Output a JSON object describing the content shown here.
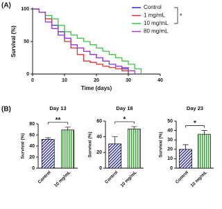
{
  "panel_labels": [
    "(A)",
    "(B)"
  ],
  "chart_data": [
    {
      "type": "line",
      "step": true,
      "xlabel": "Time (days)",
      "ylabel": "Survival (%)",
      "x": [
        0,
        2,
        4,
        6,
        8,
        10,
        12,
        14,
        16,
        18,
        20,
        22,
        24,
        26,
        28,
        30,
        32,
        34,
        36
      ],
      "series": [
        {
          "name": "Control",
          "color": "#2b2bd9",
          "values": [
            100,
            95,
            85,
            75,
            65,
            55,
            45,
            40,
            35,
            30,
            25,
            20,
            15,
            12,
            8,
            0,
            null,
            null,
            null
          ]
        },
        {
          "name": "1 mg/mL",
          "color": "#e0302e",
          "values": [
            100,
            95,
            85,
            70,
            60,
            50,
            40,
            30,
            20,
            18,
            15,
            12,
            10,
            8,
            5,
            0,
            null,
            null,
            null
          ]
        },
        {
          "name": "10 mg/mL",
          "color": "#39c43a",
          "values": [
            100,
            95,
            90,
            85,
            75,
            65,
            60,
            55,
            50,
            45,
            40,
            35,
            30,
            25,
            20,
            15,
            8,
            0,
            null
          ]
        },
        {
          "name": "80 mg/mL",
          "color": "#a23bd6",
          "values": [
            100,
            95,
            80,
            70,
            60,
            55,
            45,
            40,
            35,
            30,
            25,
            20,
            15,
            12,
            10,
            5,
            0,
            null,
            null
          ]
        }
      ],
      "xlim": [
        0,
        40
      ],
      "xticks": [
        0,
        10,
        20,
        30,
        40
      ],
      "ylim": [
        0,
        100
      ],
      "yticks": [
        0,
        50,
        100
      ],
      "legend": "upper right",
      "significance": "*"
    },
    {
      "type": "bar",
      "title": "Day 13",
      "ylabel": "Survival (%)",
      "categories": [
        "Control",
        "10 mg/mL"
      ],
      "values": [
        52,
        69
      ],
      "errors": [
        3,
        5
      ],
      "colors": [
        "#3a3aa8",
        "#2faa2f"
      ],
      "hatches": [
        "diagonal",
        "vertical"
      ],
      "ylim": [
        0,
        80
      ],
      "yticks": [
        0,
        20,
        40,
        60,
        80
      ],
      "significance": "**"
    },
    {
      "type": "bar",
      "title": "Day 18",
      "ylabel": "Survival (%)",
      "categories": [
        "Control",
        "10 mg/mL"
      ],
      "values": [
        31,
        50
      ],
      "errors": [
        9,
        3
      ],
      "colors": [
        "#3a3aa8",
        "#2faa2f"
      ],
      "hatches": [
        "diagonal",
        "vertical"
      ],
      "ylim": [
        0,
        60
      ],
      "yticks": [
        0,
        20,
        40,
        60
      ],
      "significance": "*"
    },
    {
      "type": "bar",
      "title": "Day 23",
      "ylabel": "Survival (%)",
      "categories": [
        "Control",
        "10 mg/mL"
      ],
      "values": [
        20,
        36
      ],
      "errors": [
        5,
        4
      ],
      "colors": [
        "#3a3aa8",
        "#2faa2f"
      ],
      "hatches": [
        "diagonal",
        "vertical"
      ],
      "ylim": [
        0,
        50
      ],
      "yticks": [
        0,
        10,
        20,
        30,
        40,
        50
      ],
      "significance": "*"
    }
  ]
}
